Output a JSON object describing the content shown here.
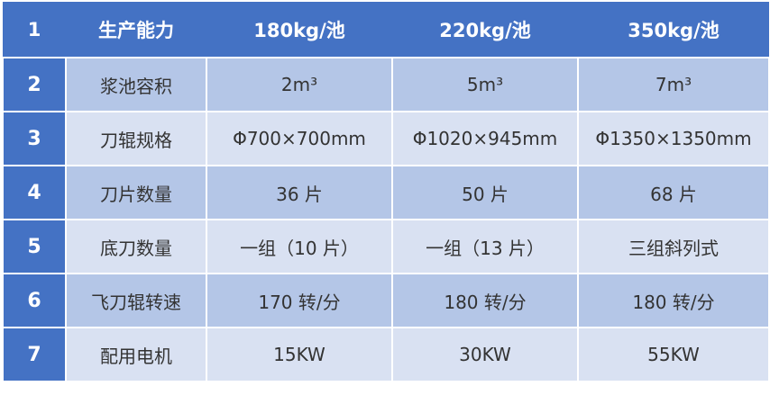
{
  "header": {
    "num": "1",
    "label": "生产能力",
    "cols": [
      "180kg/池",
      "220kg/池",
      "350kg/池"
    ]
  },
  "rows": [
    {
      "num": "2",
      "label": "浆池容积",
      "values": [
        "2m³",
        "5m³",
        "7m³"
      ]
    },
    {
      "num": "3",
      "label": "刀辊规格",
      "values": [
        "Φ700×700mm",
        "Φ1020×945mm",
        "Φ1350×1350mm"
      ]
    },
    {
      "num": "4",
      "label": "刀片数量",
      "values": [
        "36 片",
        "50 片",
        "68 片"
      ]
    },
    {
      "num": "5",
      "label": "底刀数量",
      "values": [
        "一组（10 片）",
        "一组（13 片）",
        "三组斜列式"
      ]
    },
    {
      "num": "6",
      "label": "飞刀辊转速",
      "values": [
        "170 转/分",
        "180 转/分",
        "180 转/分"
      ]
    },
    {
      "num": "7",
      "label": "配用电机",
      "values": [
        "15KW",
        "30KW",
        "55KW"
      ]
    }
  ],
  "colors": {
    "header": "#4472C4",
    "row_dark": "#B4C6E7",
    "row_light": "#D9E1F2"
  }
}
